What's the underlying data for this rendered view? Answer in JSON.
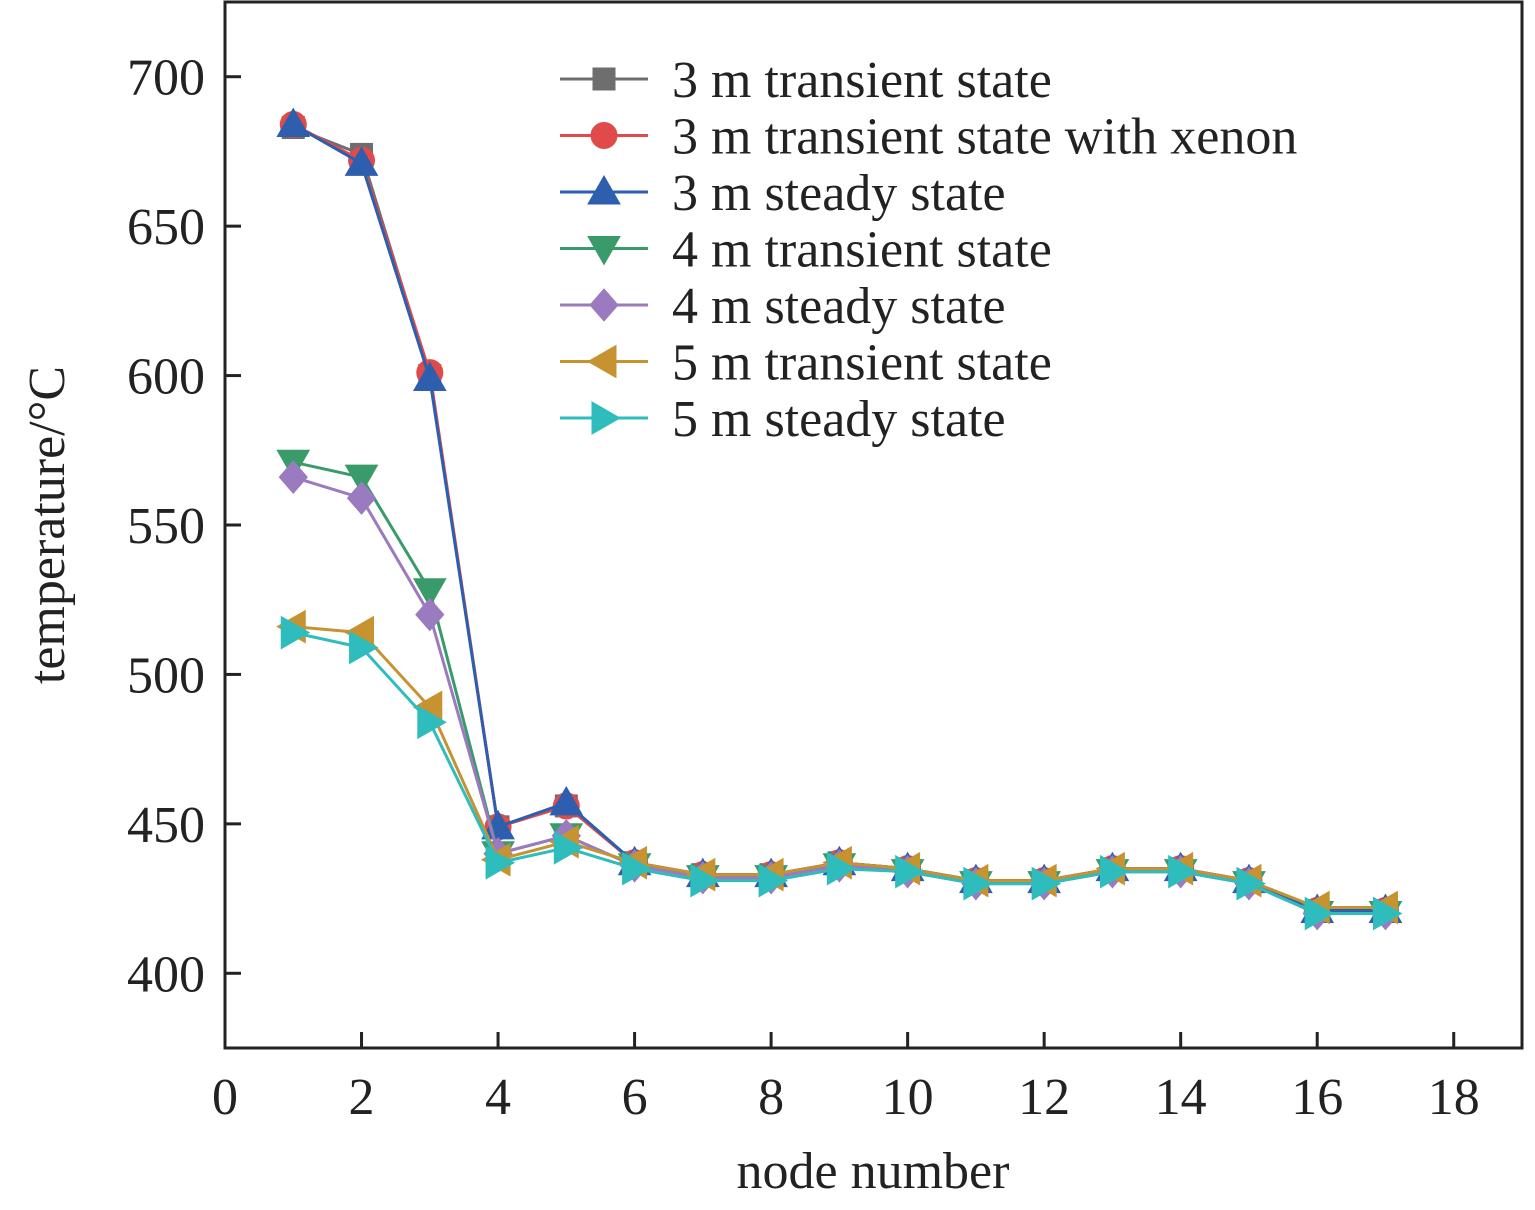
{
  "chart_data": {
    "type": "line",
    "xlabel": "node number",
    "ylabel": "temperature/°C",
    "xlim": [
      0,
      19
    ],
    "ylim": [
      375,
      725
    ],
    "xticks": [
      0,
      2,
      4,
      6,
      8,
      10,
      12,
      14,
      16,
      18
    ],
    "yticks": [
      400,
      450,
      500,
      550,
      600,
      650,
      700
    ],
    "grid": false,
    "legend_position": "top-right",
    "x": [
      1,
      2,
      3,
      4,
      5,
      6,
      7,
      8,
      9,
      10,
      11,
      12,
      13,
      14,
      15,
      16,
      17
    ],
    "series": [
      {
        "name": "3 m transient state",
        "marker": "square",
        "color": "#6e6e6e",
        "values": [
          683,
          674,
          600,
          449,
          456,
          437,
          433,
          433,
          437,
          435,
          431,
          431,
          435,
          435,
          431,
          421,
          421
        ]
      },
      {
        "name": "3 m transient state with xenon",
        "marker": "circle",
        "color": "#e04a4a",
        "values": [
          684,
          672,
          601,
          449,
          456,
          437,
          433,
          433,
          437,
          435,
          431,
          431,
          435,
          435,
          431,
          421,
          421
        ]
      },
      {
        "name": "3 m steady state",
        "marker": "triangle-up",
        "color": "#2e5fae",
        "values": [
          684,
          671,
          599,
          449,
          457,
          437,
          433,
          433,
          437,
          435,
          431,
          431,
          435,
          435,
          431,
          421,
          421
        ]
      },
      {
        "name": "4 m transient state",
        "marker": "triangle-down",
        "color": "#3a9b6a",
        "values": [
          571,
          566,
          528,
          440,
          446,
          436,
          432,
          432,
          436,
          434,
          430,
          430,
          434,
          434,
          430,
          420,
          420
        ]
      },
      {
        "name": "4 m steady state",
        "marker": "diamond",
        "color": "#9a7bbf",
        "values": [
          566,
          559,
          520,
          440,
          446,
          436,
          432,
          432,
          436,
          434,
          430,
          430,
          434,
          434,
          430,
          420,
          420
        ]
      },
      {
        "name": "5 m transient state",
        "marker": "triangle-left",
        "color": "#c79330",
        "values": [
          516,
          514,
          489,
          438,
          444,
          437,
          433,
          433,
          437,
          435,
          431,
          431,
          435,
          435,
          431,
          422,
          422
        ]
      },
      {
        "name": "5 m steady state",
        "marker": "triangle-right",
        "color": "#2fbcbc",
        "values": [
          514,
          509,
          484,
          437,
          442,
          435,
          431,
          431,
          435,
          434,
          430,
          430,
          434,
          434,
          430,
          420,
          420
        ]
      }
    ]
  }
}
